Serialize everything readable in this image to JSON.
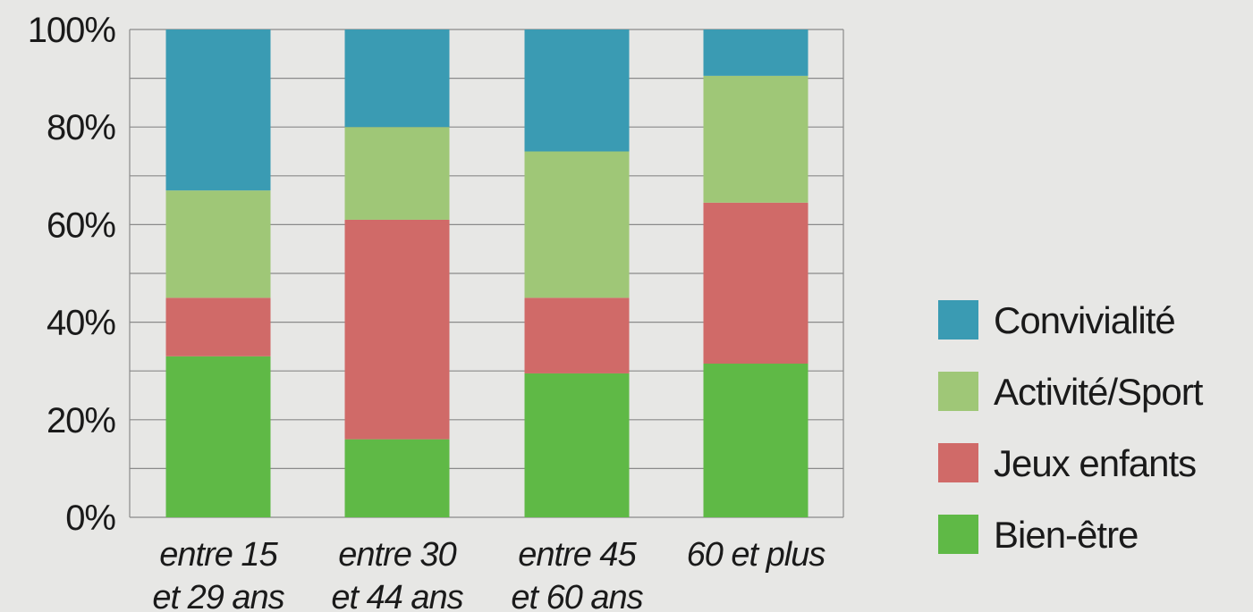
{
  "chart_data": {
    "type": "bar",
    "stacked": true,
    "percent": true,
    "categories": [
      [
        "entre 15",
        "et 29 ans"
      ],
      [
        "entre 30",
        "et 44 ans"
      ],
      [
        "entre 45",
        "et 60 ans"
      ],
      [
        "60 et plus"
      ]
    ],
    "series": [
      {
        "name": "Bien-être",
        "color": "#5fb946",
        "values": [
          33,
          16,
          29.5,
          31.5
        ]
      },
      {
        "name": "Jeux enfants",
        "color": "#d06a68",
        "values": [
          12,
          45,
          15.5,
          33
        ]
      },
      {
        "name": "Activité/Sport",
        "color": "#9fc777",
        "values": [
          22,
          19,
          30,
          26
        ]
      },
      {
        "name": "Convivialité",
        "color": "#3a9bb3",
        "values": [
          33,
          20,
          25,
          9.5
        ]
      }
    ],
    "ylim": [
      0,
      100
    ],
    "yticks": [
      "0%",
      "20%",
      "40%",
      "60%",
      "80%",
      "100%"
    ],
    "grid": true,
    "legend_position": "right"
  }
}
